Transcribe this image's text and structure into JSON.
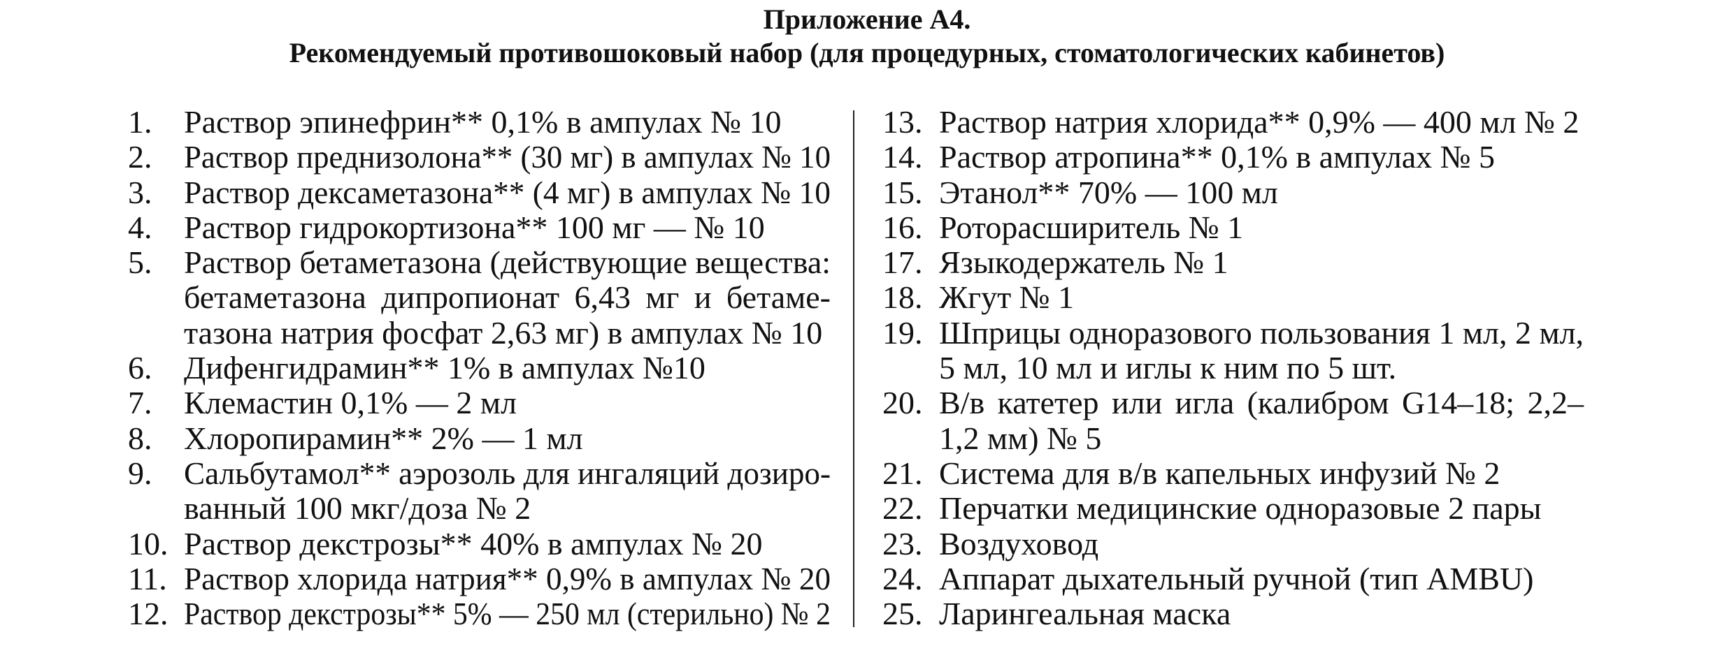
{
  "header": {
    "title": "Приложение А4.",
    "subtitle": "Рекомендуемый противошоковый набор (для процедурных, стоматологических кабинетов)"
  },
  "left_column": [
    {
      "number": "1.",
      "lines": [
        "Раствор эпинефрин** 0,1% в ампулах № 10"
      ]
    },
    {
      "number": "2.",
      "lines": [
        "Раствор преднизолона** (30 мг) в ампулах № 10"
      ]
    },
    {
      "number": "3.",
      "lines": [
        "Раствор дексаметазона** (4 мг) в ампулах № 10"
      ]
    },
    {
      "number": "4.",
      "lines": [
        "Раствор гидрокортизона** 100 мг — № 10"
      ]
    },
    {
      "number": "5.",
      "lines": [
        "Раствор бетаметазона (действующие вещества:",
        "бетаметазона дипропионат 6,43 мг и бетаме-",
        "тазона натрия фосфат 2,63 мг) в ампулах № 10"
      ]
    },
    {
      "number": "6.",
      "lines": [
        "Дифенгидрамин** 1% в ампулах №10"
      ]
    },
    {
      "number": "7.",
      "lines": [
        "Клемастин 0,1% — 2 мл"
      ]
    },
    {
      "number": "8.",
      "lines": [
        "Хлоропирамин** 2% — 1 мл"
      ]
    },
    {
      "number": "9.",
      "lines": [
        "Сальбутамол** аэрозоль для ингаляций дозиро-",
        "ванный 100 мкг/доза № 2"
      ]
    },
    {
      "number": "10.",
      "lines": [
        "Раствор декстрозы** 40% в ампулах № 20"
      ]
    },
    {
      "number": "11.",
      "lines": [
        "Раствор хлорида натрия** 0,9% в ампулах № 20"
      ]
    },
    {
      "number": "12.",
      "lines": [
        "Раствор декстрозы** 5% — 250 мл (стерильно) № 2"
      ]
    }
  ],
  "right_column": [
    {
      "number": "13.",
      "lines": [
        "Раствор натрия хлорида** 0,9% — 400 мл № 2"
      ]
    },
    {
      "number": "14.",
      "lines": [
        "Раствор атропина** 0,1% в ампулах № 5"
      ]
    },
    {
      "number": "15.",
      "lines": [
        "Этанол** 70% — 100 мл"
      ]
    },
    {
      "number": "16.",
      "lines": [
        "Роторасширитель № 1"
      ]
    },
    {
      "number": "17.",
      "lines": [
        "Языкодержатель № 1"
      ]
    },
    {
      "number": "18.",
      "lines": [
        "Жгут № 1"
      ]
    },
    {
      "number": "19.",
      "lines": [
        "Шприцы одноразового пользования 1 мл, 2 мл,",
        "5 мл, 10 мл и иглы к ним по 5 шт."
      ]
    },
    {
      "number": "20.",
      "lines": [
        "В/в катетер или игла (калибром G14–18; 2,2–",
        "1,2 мм) № 5"
      ]
    },
    {
      "number": "21.",
      "lines": [
        "Система для в/в капельных инфузий № 2"
      ]
    },
    {
      "number": "22.",
      "lines": [
        "Перчатки медицинские одноразовые 2 пары"
      ]
    },
    {
      "number": "23.",
      "lines": [
        "Воздуховод"
      ]
    },
    {
      "number": "24.",
      "lines": [
        "Аппарат дыхательный ручной (тип AMBU)"
      ]
    },
    {
      "number": "25.",
      "lines": [
        "Ларингеальная маска"
      ]
    }
  ]
}
